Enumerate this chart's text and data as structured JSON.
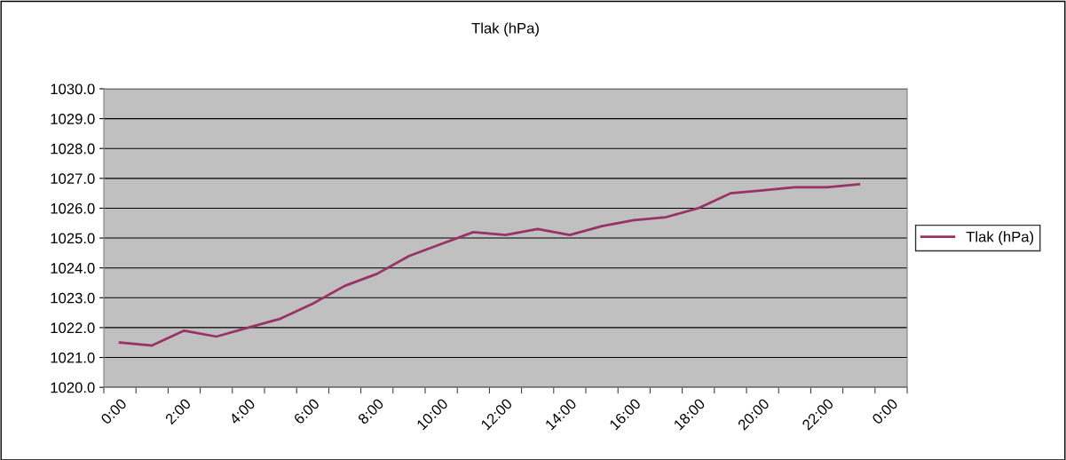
{
  "chart_data": {
    "type": "line",
    "title": "Tlak (hPa)",
    "categories": [
      "0:00",
      null,
      "2:00",
      null,
      "4:00",
      null,
      "6:00",
      null,
      "8:00",
      null,
      "10:00",
      null,
      "12:00",
      null,
      "14:00",
      null,
      "16:00",
      null,
      "18:00",
      null,
      "20:00",
      null,
      "22:00",
      null,
      "0:00"
    ],
    "series": [
      {
        "name": "Tlak (hPa)",
        "color": "#993366",
        "values": [
          1021.5,
          1021.4,
          1021.9,
          1021.7,
          1022.0,
          1022.3,
          1022.8,
          1023.4,
          1023.8,
          1024.4,
          1024.8,
          1025.2,
          1025.1,
          1025.3,
          1025.1,
          1025.4,
          1025.6,
          1025.7,
          1026.0,
          1026.5,
          1026.6,
          1026.7,
          1026.7,
          1026.8,
          null
        ]
      }
    ],
    "ylim": [
      1020,
      1030
    ],
    "yticks": [
      {
        "value": 1020,
        "label": "1020.0"
      },
      {
        "value": 1021,
        "label": "1021.0"
      },
      {
        "value": 1022,
        "label": "1022.0"
      },
      {
        "value": 1023,
        "label": "1023.0"
      },
      {
        "value": 1024,
        "label": "1024.0"
      },
      {
        "value": 1025,
        "label": "1025.0"
      },
      {
        "value": 1026,
        "label": "1026.0"
      },
      {
        "value": 1027,
        "label": "1027.0"
      },
      {
        "value": 1028,
        "label": "1028.0"
      },
      {
        "value": 1029,
        "label": "1029.0"
      },
      {
        "value": 1030,
        "label": "1030.0"
      }
    ],
    "grid": "y",
    "legend": "right",
    "marker": "none",
    "line_style": "solid"
  }
}
